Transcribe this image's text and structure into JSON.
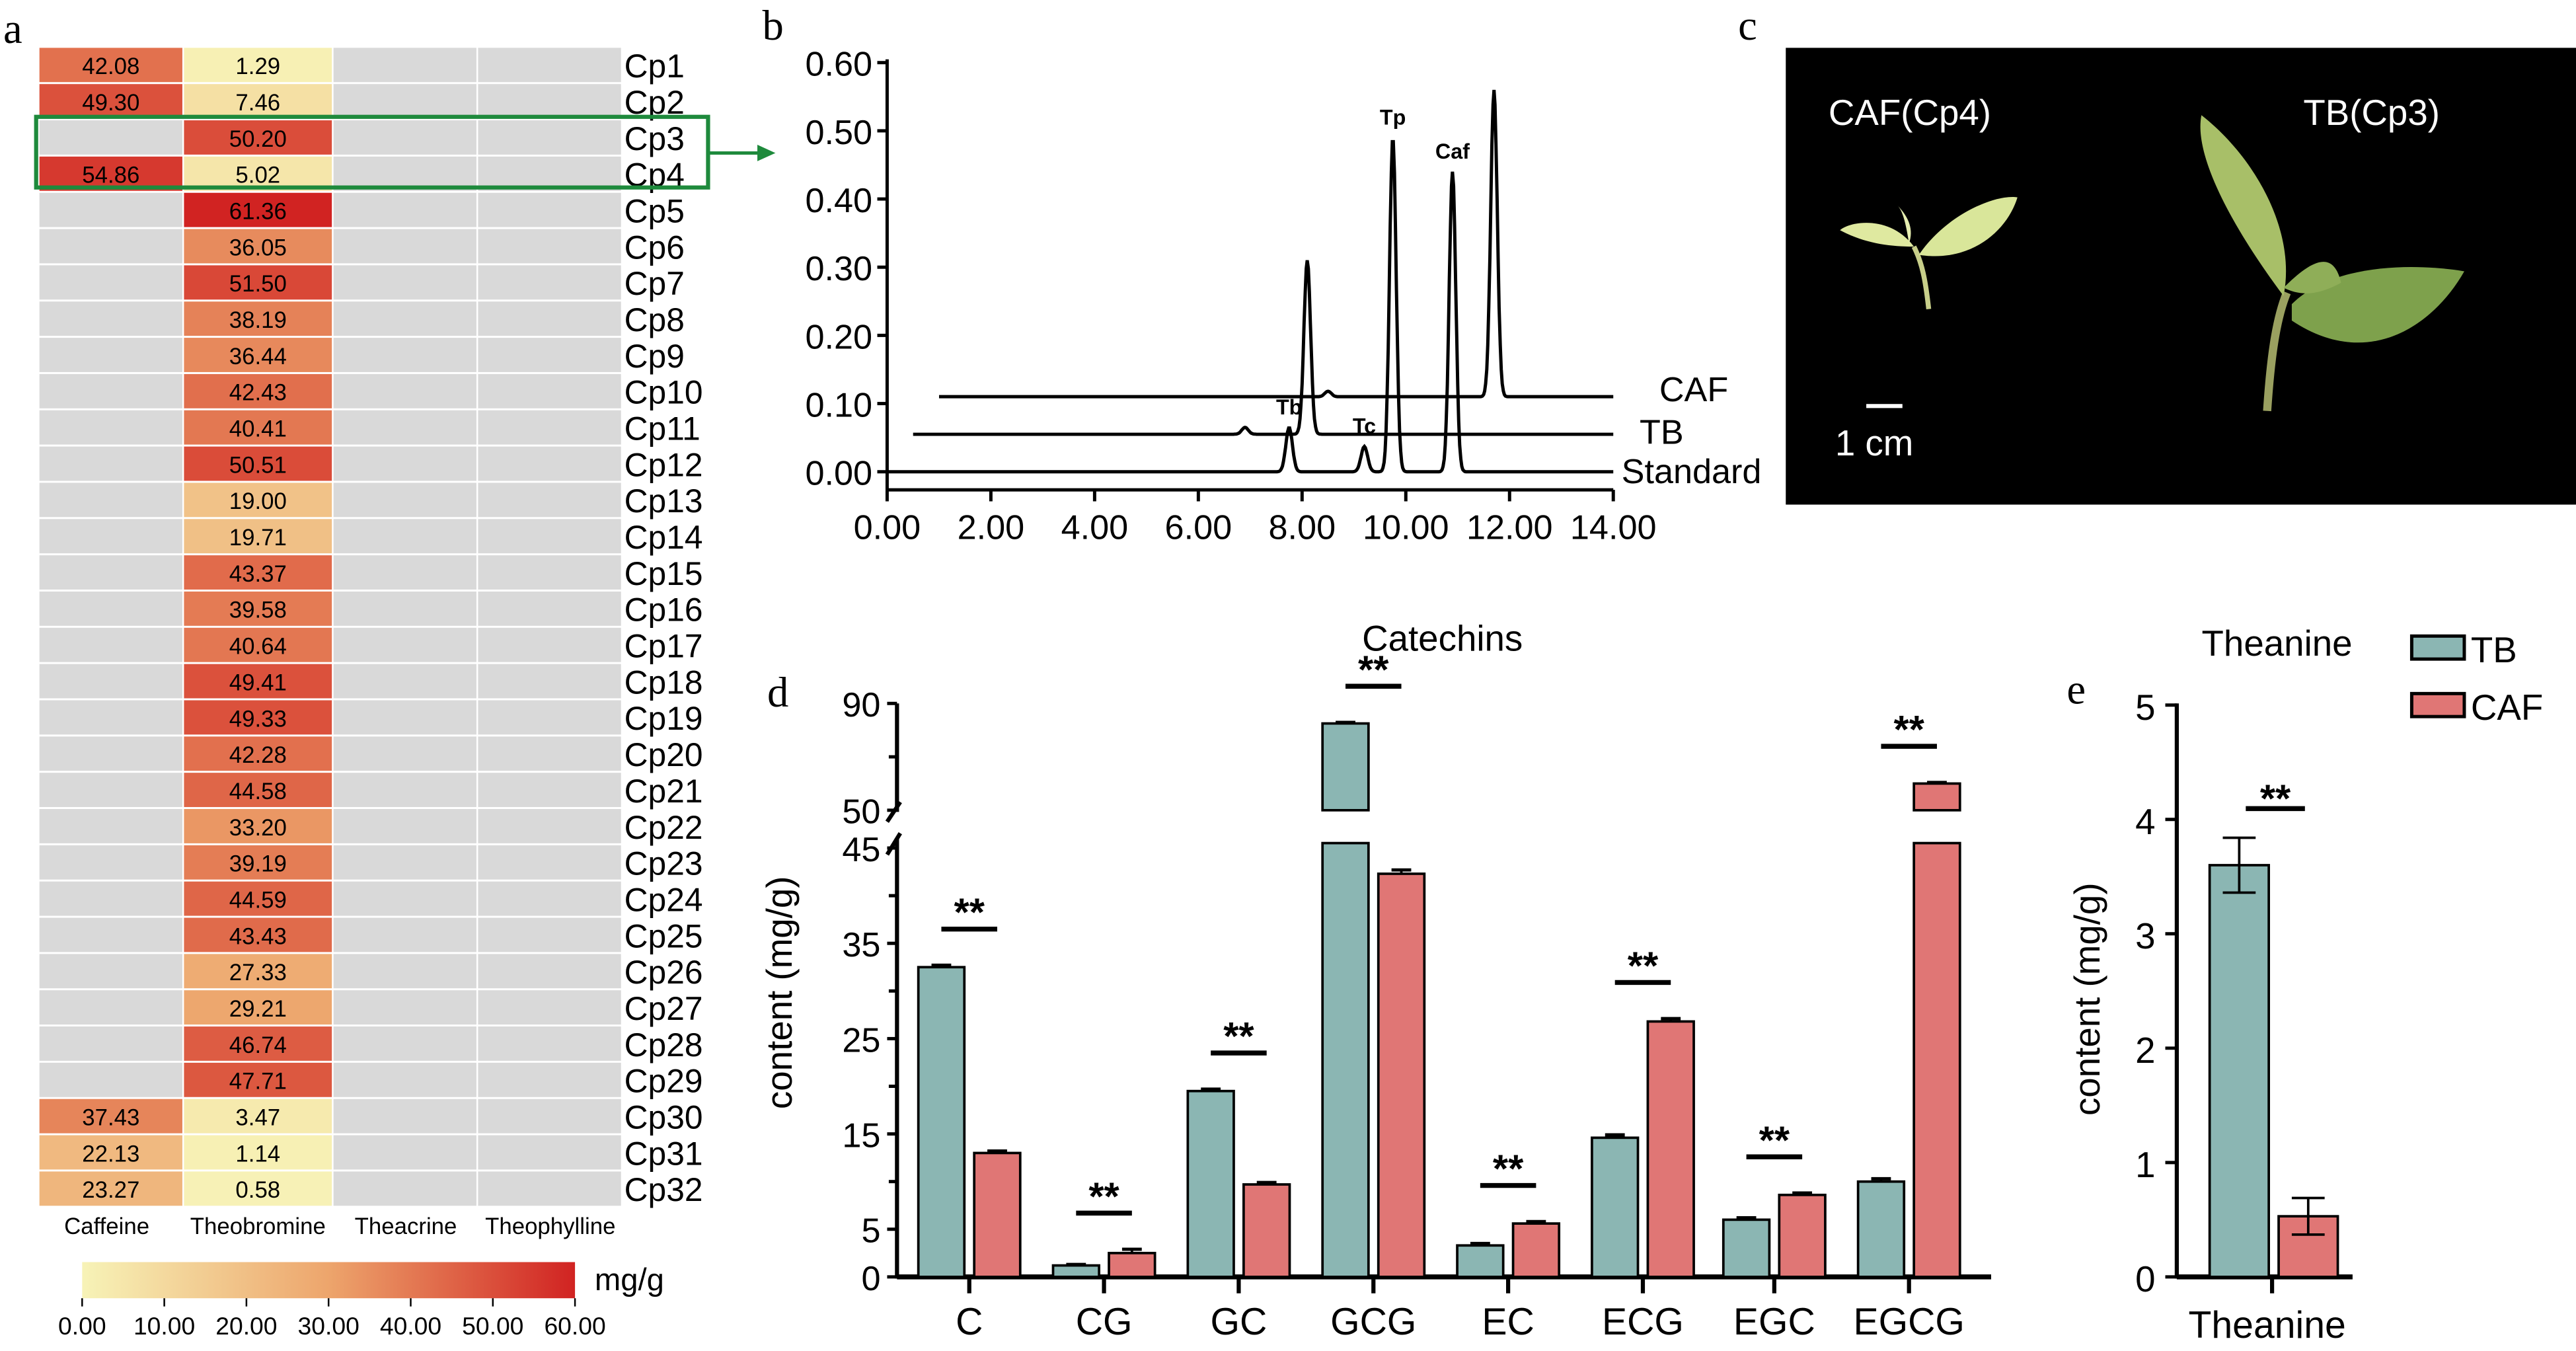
{
  "panel_letters": {
    "a": "a",
    "b": "b",
    "c": "c",
    "d": "d",
    "e": "e"
  },
  "colors": {
    "tb": "#8bb6b3",
    "caf": "#e07675",
    "highlight": "#1e8a3c",
    "missing": "#d9d9d9",
    "scale_low": "#f7f3b7",
    "scale_mid": "#eda56c",
    "scale_high": "#d12322",
    "photo_bg": "#000000"
  },
  "chart_data": [
    {
      "type": "heatmap",
      "rows": [
        "Cp1",
        "Cp2",
        "Cp3",
        "Cp4",
        "Cp5",
        "Cp6",
        "Cp7",
        "Cp8",
        "Cp9",
        "Cp10",
        "Cp11",
        "Cp12",
        "Cp13",
        "Cp14",
        "Cp15",
        "Cp16",
        "Cp17",
        "Cp18",
        "Cp19",
        "Cp20",
        "Cp21",
        "Cp22",
        "Cp23",
        "Cp24",
        "Cp25",
        "Cp26",
        "Cp27",
        "Cp28",
        "Cp29",
        "Cp30",
        "Cp31",
        "Cp32"
      ],
      "columns": [
        "Caffeine",
        "Theobromine",
        "Theacrine",
        "Theophylline"
      ],
      "values": [
        [
          "42.08",
          "1.29",
          null,
          null
        ],
        [
          "49.30",
          "7.46",
          null,
          null
        ],
        [
          null,
          "50.20",
          null,
          null
        ],
        [
          "54.86",
          "5.02",
          null,
          null
        ],
        [
          null,
          "61.36",
          null,
          null
        ],
        [
          null,
          "36.05",
          null,
          null
        ],
        [
          null,
          "51.50",
          null,
          null
        ],
        [
          null,
          "38.19",
          null,
          null
        ],
        [
          null,
          "36.44",
          null,
          null
        ],
        [
          null,
          "42.43",
          null,
          null
        ],
        [
          null,
          "40.41",
          null,
          null
        ],
        [
          null,
          "50.51",
          null,
          null
        ],
        [
          null,
          "19.00",
          null,
          null
        ],
        [
          null,
          "19.71",
          null,
          null
        ],
        [
          null,
          "43.37",
          null,
          null
        ],
        [
          null,
          "39.58",
          null,
          null
        ],
        [
          null,
          "40.64",
          null,
          null
        ],
        [
          null,
          "49.41",
          null,
          null
        ],
        [
          null,
          "49.33",
          null,
          null
        ],
        [
          null,
          "42.28",
          null,
          null
        ],
        [
          null,
          "44.58",
          null,
          null
        ],
        [
          null,
          "33.20",
          null,
          null
        ],
        [
          null,
          "39.19",
          null,
          null
        ],
        [
          null,
          "44.59",
          null,
          null
        ],
        [
          null,
          "43.43",
          null,
          null
        ],
        [
          null,
          "27.33",
          null,
          null
        ],
        [
          null,
          "29.21",
          null,
          null
        ],
        [
          null,
          "46.74",
          null,
          null
        ],
        [
          null,
          "47.71",
          null,
          null
        ],
        [
          "37.43",
          "3.47",
          null,
          null
        ],
        [
          "22.13",
          "1.14",
          null,
          null
        ],
        [
          "23.27",
          "0.58",
          null,
          null
        ]
      ],
      "highlighted_rows": [
        "Cp3",
        "Cp4"
      ],
      "colorbar": {
        "label": "mg/g",
        "range": [
          0,
          60
        ],
        "ticks": [
          "0.00",
          "10.00",
          "20.00",
          "30.00",
          "40.00",
          "50.00",
          "60.00"
        ]
      }
    },
    {
      "type": "line",
      "xlim": [
        0,
        14
      ],
      "ylim": [
        0,
        0.6
      ],
      "xticks": [
        "0.00",
        "2.00",
        "4.00",
        "6.00",
        "8.00",
        "10.00",
        "12.00",
        "14.00"
      ],
      "yticks": [
        "0.00",
        "0.10",
        "0.20",
        "0.30",
        "0.40",
        "0.50",
        "0.60"
      ],
      "series": [
        {
          "name": "CAF",
          "baseline": 0.11,
          "x_start": 1.0,
          "peaks": [
            {
              "rt": 8.5,
              "height": 0.008
            },
            {
              "rt": 11.7,
              "height": 0.45
            }
          ]
        },
        {
          "name": "TB",
          "baseline": 0.055,
          "x_start": 0.5,
          "peaks": [
            {
              "rt": 6.9,
              "height": 0.01
            },
            {
              "rt": 8.1,
              "height": 0.255
            }
          ]
        },
        {
          "name": "Standard",
          "baseline": 0.0,
          "x_start": 0.0,
          "peaks": [
            {
              "rt": 7.75,
              "height": 0.065,
              "label": "Tb"
            },
            {
              "rt": 9.2,
              "height": 0.037,
              "label": "Tc"
            },
            {
              "rt": 9.75,
              "height": 0.49,
              "label": "Tp"
            },
            {
              "rt": 10.9,
              "height": 0.44,
              "label": "Caf"
            }
          ]
        }
      ]
    },
    {
      "type": "bar",
      "title": "Catechins",
      "ylabel": "content (mg/g)",
      "categories": [
        "C",
        "CG",
        "GC",
        "GCG",
        "EC",
        "ECG",
        "EGC",
        "EGCG"
      ],
      "yticks_lower": [
        "0",
        "5",
        "15",
        "25",
        "35",
        "45"
      ],
      "yticks_upper": [
        "50",
        "90"
      ],
      "axis_break": [
        45,
        50
      ],
      "ylim": [
        0,
        90
      ],
      "series": [
        {
          "name": "TB",
          "values": [
            32.5,
            1.2,
            19.5,
            82.5,
            3.3,
            14.6,
            6.0,
            10.0
          ],
          "errors": [
            0.2,
            0.1,
            0.2,
            0.4,
            0.2,
            0.3,
            0.2,
            0.3
          ]
        },
        {
          "name": "CAF",
          "values": [
            13.0,
            2.5,
            9.7,
            42.3,
            5.6,
            26.8,
            8.6,
            60.0
          ],
          "errors": [
            0.2,
            0.4,
            0.2,
            0.4,
            0.2,
            0.3,
            0.2,
            0.4
          ]
        }
      ],
      "significance": [
        "**",
        "**",
        "**",
        "**",
        "**",
        "**",
        "**",
        "**"
      ]
    },
    {
      "type": "bar",
      "title": "Theanine",
      "ylabel": "content (mg/g)",
      "categories": [
        "Theanine"
      ],
      "ylim": [
        0,
        5
      ],
      "yticks": [
        "0",
        "1",
        "2",
        "3",
        "4",
        "5"
      ],
      "series": [
        {
          "name": "TB",
          "values": [
            3.6
          ],
          "errors": [
            0.24
          ]
        },
        {
          "name": "CAF",
          "values": [
            0.53
          ],
          "errors": [
            0.16
          ]
        }
      ],
      "significance": [
        "**"
      ],
      "legend": {
        "position": "top-right",
        "entries": [
          "TB",
          "CAF"
        ]
      }
    }
  ],
  "photo": {
    "left_label": "CAF(Cp4)",
    "right_label": "TB(Cp3)",
    "scale_bar": "1 cm"
  }
}
